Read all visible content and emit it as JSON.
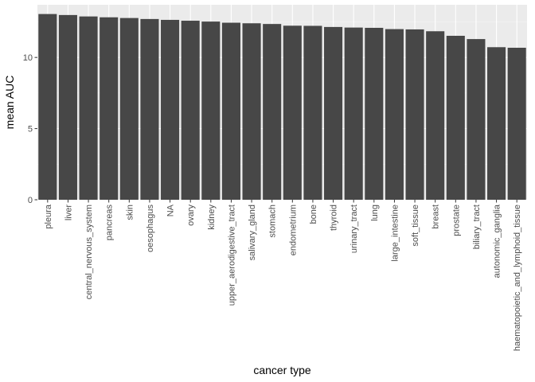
{
  "chart_data": {
    "type": "bar",
    "title": "",
    "xlabel": "cancer type",
    "ylabel": "mean AUC",
    "categories": [
      "pleura",
      "liver",
      "central_nervous_system",
      "pancreas",
      "skin",
      "oesophagus",
      "NA",
      "ovary",
      "kidney",
      "upper_aerodigestive_tract",
      "salivary_gland",
      "stomach",
      "endometrium",
      "bone",
      "thyroid",
      "urinary_tract",
      "lung",
      "large_intestine",
      "soft_tissue",
      "breast",
      "prostate",
      "biliary_tract",
      "autonomic_ganglia",
      "haematopoietic_and_lymphoid_tissue"
    ],
    "values": [
      13.05,
      12.98,
      12.88,
      12.82,
      12.77,
      12.7,
      12.64,
      12.58,
      12.52,
      12.44,
      12.4,
      12.35,
      12.23,
      12.22,
      12.14,
      12.1,
      12.08,
      11.99,
      11.97,
      11.84,
      11.52,
      11.29,
      10.72,
      10.68
    ],
    "ylim": [
      0,
      13.7
    ],
    "yticks": [
      0,
      5,
      10
    ],
    "ytick_labels": [
      "0",
      "5",
      "10"
    ],
    "grid": true,
    "legend": "none",
    "colors": {
      "bar": "#474747",
      "panel": "#ebebeb",
      "grid_major": "#ffffff",
      "grid_minor": "#f5f5f5"
    }
  }
}
